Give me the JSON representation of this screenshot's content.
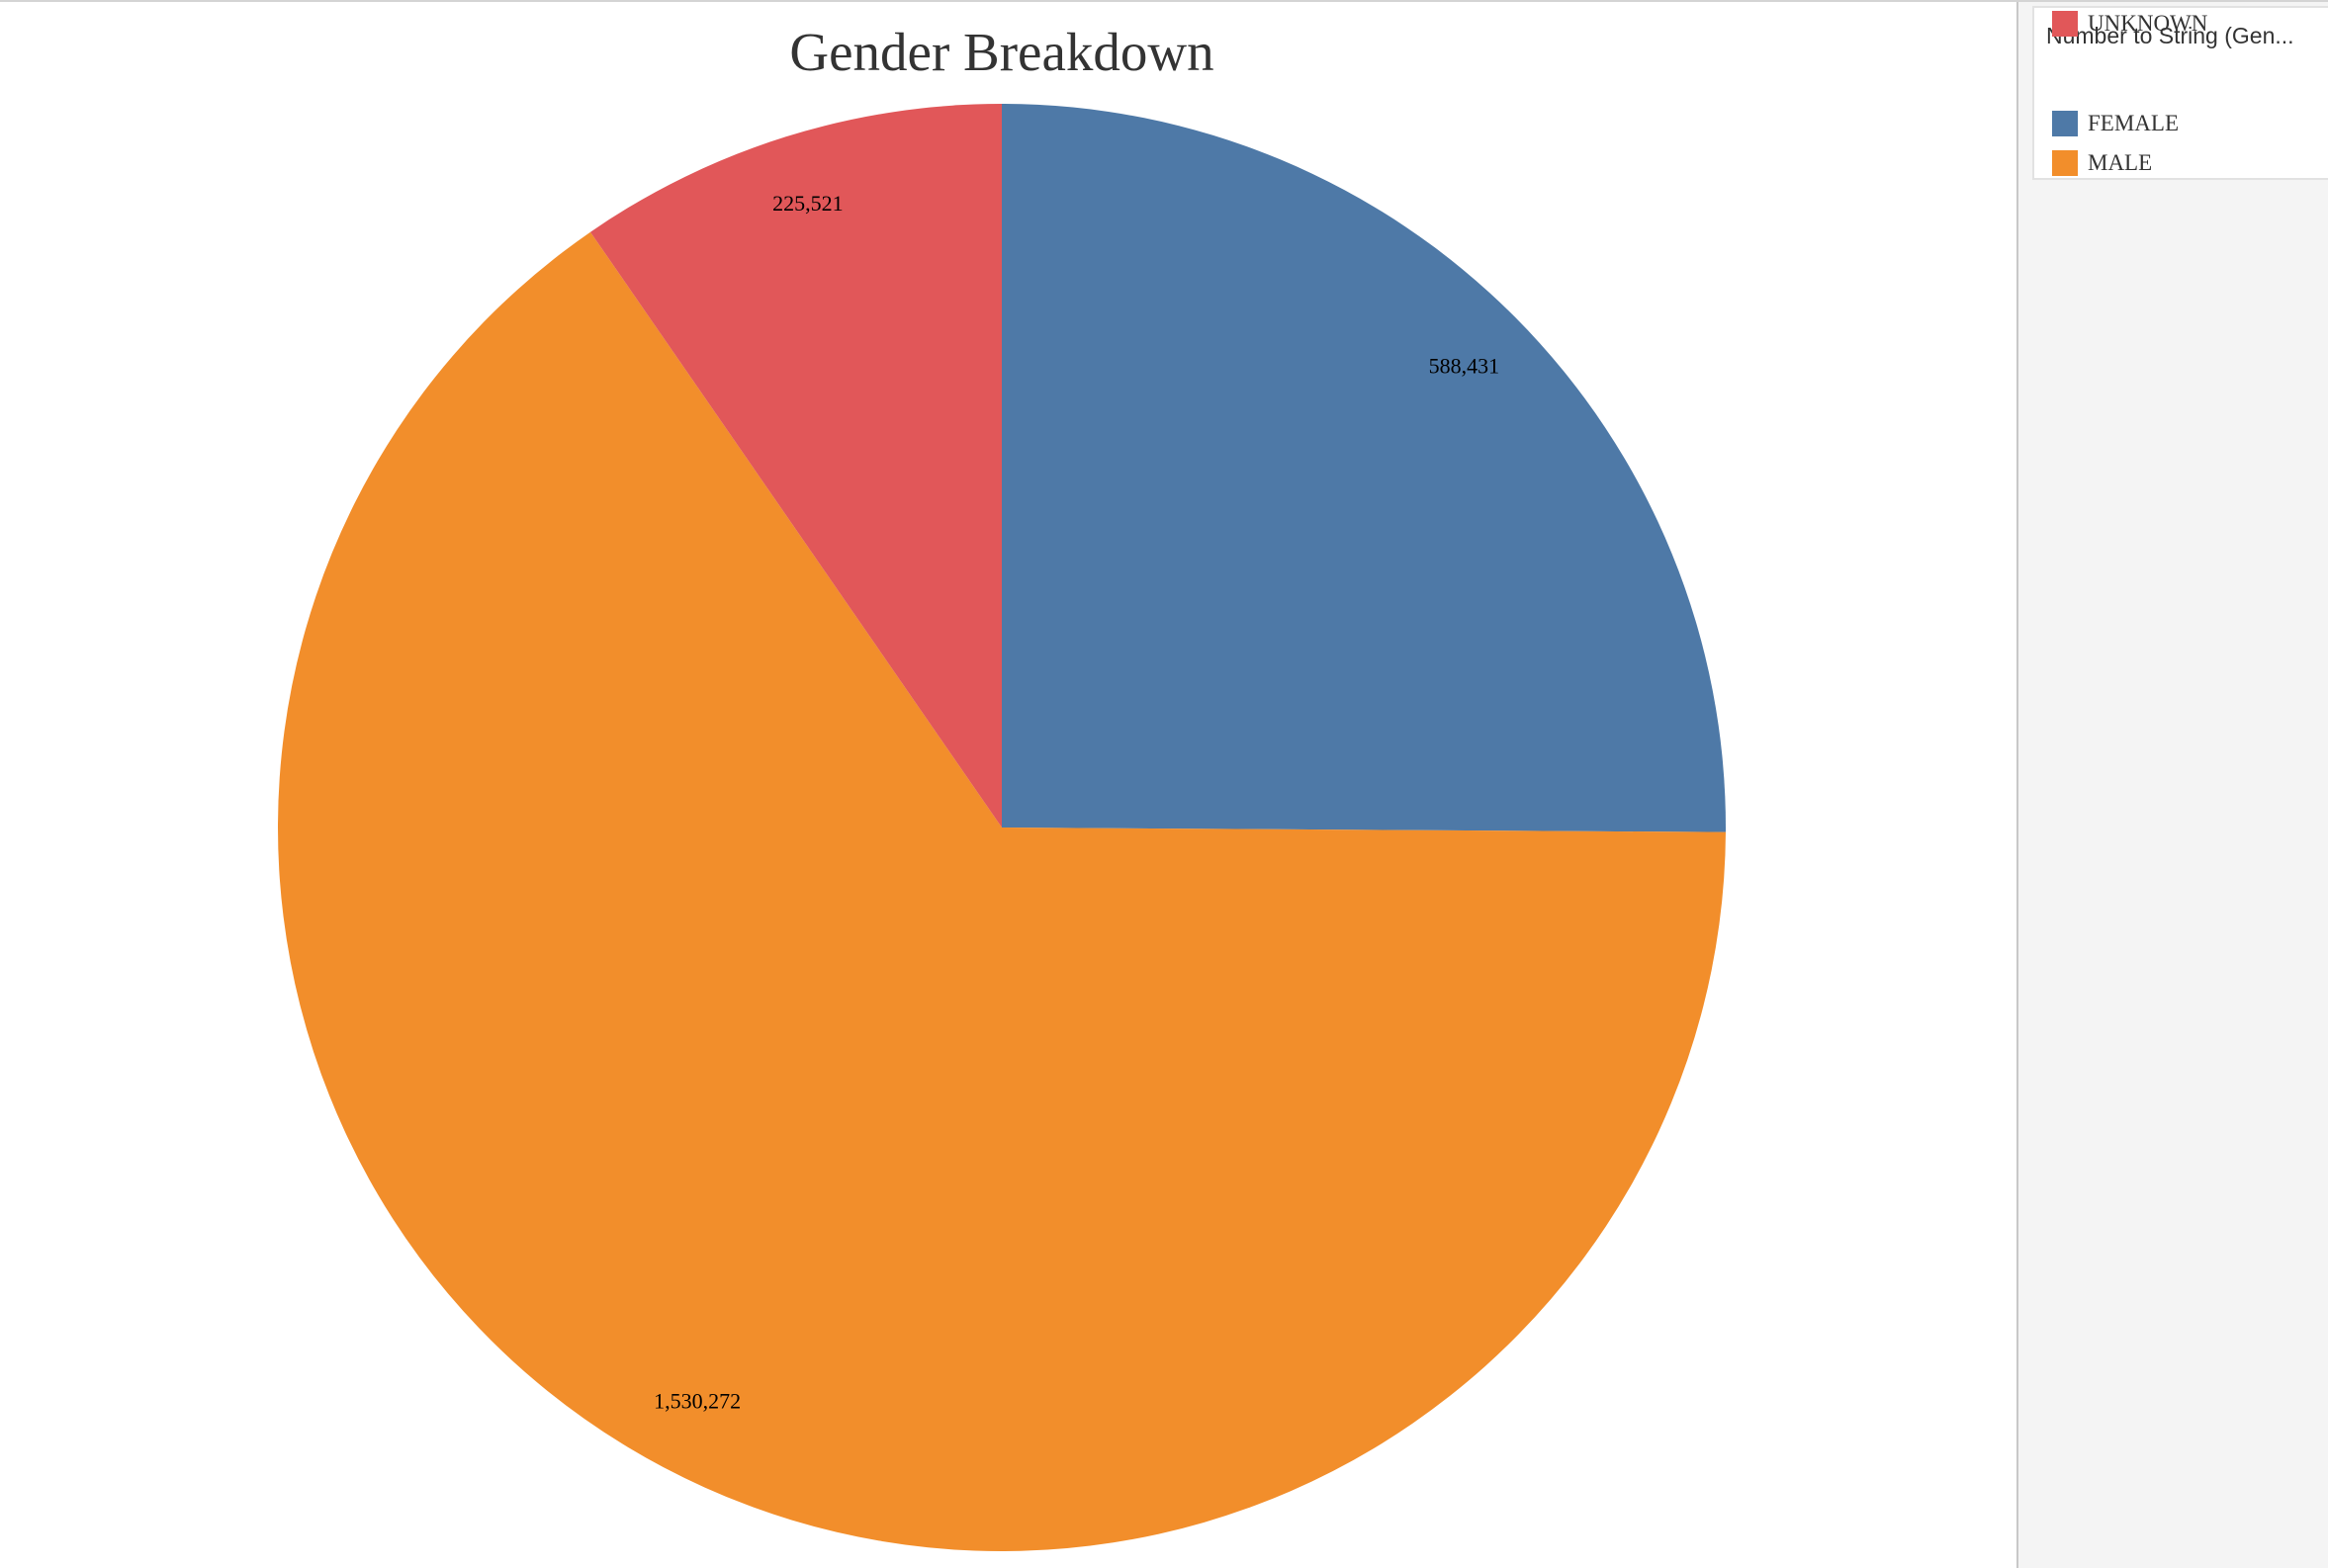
{
  "chart_data": {
    "type": "pie",
    "title": "Gender Breakdown",
    "legend_title": "Number to String (Gen...",
    "legend_position": "top-right",
    "slices": [
      {
        "label": "FEMALE",
        "value": 588431,
        "value_label": "588,431",
        "color": "#4e79a7"
      },
      {
        "label": "MALE",
        "value": 1530272,
        "value_label": "1,530,272",
        "color": "#f28e2b"
      },
      {
        "label": "UNKNOWN",
        "value": 225521,
        "value_label": "225,521",
        "color": "#e15759"
      }
    ]
  }
}
